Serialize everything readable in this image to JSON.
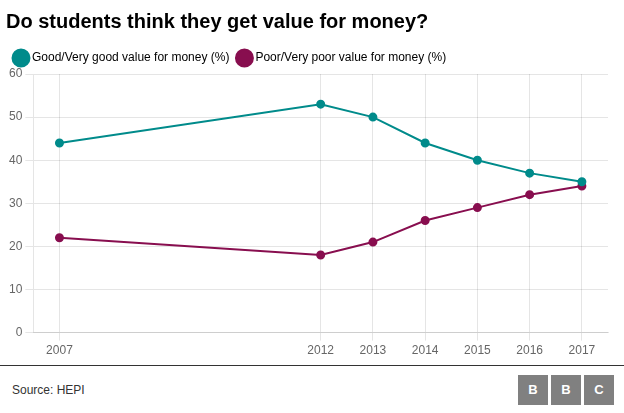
{
  "chart_data": {
    "type": "line",
    "title": "Do students think they get value for money?",
    "x": [
      2007,
      2012,
      2013,
      2014,
      2015,
      2016,
      2017
    ],
    "series": [
      {
        "name": "Good/Very good value for money (%)",
        "color": "#008B8B",
        "marker": "circle",
        "values": [
          44,
          53,
          50,
          44,
          40,
          37,
          35
        ]
      },
      {
        "name": "Poor/Very poor value for money (%)",
        "color": "#880E4F",
        "marker": "circle",
        "values": [
          22,
          18,
          21,
          26,
          29,
          32,
          34
        ]
      }
    ],
    "xlim": [
      2006.5,
      2017.5
    ],
    "xticks": [
      2007,
      2012,
      2013,
      2014,
      2015,
      2016,
      2017
    ],
    "ylim": [
      0,
      60
    ],
    "yticks": [
      0,
      10,
      20,
      30,
      40,
      50,
      60
    ],
    "grid": true,
    "legend": "upper left",
    "annotations": [
      "Source: HEPI",
      "BBC"
    ]
  }
}
